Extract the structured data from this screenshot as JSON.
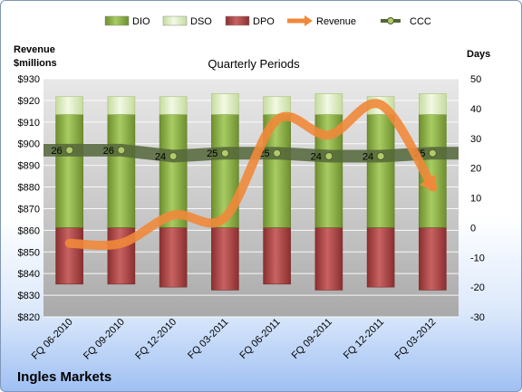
{
  "chart_data": {
    "type": "bar",
    "company": "Ingles Markets",
    "title": "Quarterly Periods",
    "left_axis_title": [
      "Revenue",
      "$millions"
    ],
    "right_axis_title": "Days",
    "left_ticks": [
      "$820",
      "$830",
      "$840",
      "$850",
      "$860",
      "$870",
      "$880",
      "$890",
      "$900",
      "$910",
      "$920",
      "$930"
    ],
    "right_ticks": [
      "-30",
      "-20",
      "-10",
      "0",
      "10",
      "20",
      "30",
      "40",
      "50"
    ],
    "left_range": [
      820,
      930
    ],
    "right_range": [
      -30,
      50
    ],
    "categories": [
      "FQ 06-2010",
      "FQ 09-2010",
      "FQ 12-2010",
      "FQ 03-2011",
      "FQ 06-2011",
      "FQ 09-2011",
      "FQ 12-2011",
      "FQ 03-2012"
    ],
    "series": [
      {
        "name": "DIO",
        "axis": "right",
        "kind": "stacked-bar",
        "color": "#8fb24a",
        "values": [
          38,
          38,
          38,
          38,
          38,
          38,
          38,
          38
        ]
      },
      {
        "name": "DSO",
        "axis": "right",
        "kind": "stacked-bar",
        "color": "#ddeec1",
        "values": [
          6,
          6,
          6,
          7,
          6,
          7,
          6,
          7
        ]
      },
      {
        "name": "DPO",
        "axis": "right",
        "kind": "negative-bar",
        "color": "#b24a4a",
        "values": [
          -19,
          -19,
          -20,
          -21,
          -19,
          -21,
          -20,
          -21
        ]
      },
      {
        "name": "Revenue",
        "axis": "left",
        "kind": "line",
        "color": "#f0883a",
        "values": [
          854,
          854,
          867,
          866,
          911,
          904,
          918,
          880
        ]
      },
      {
        "name": "CCC",
        "axis": "right",
        "kind": "line",
        "color": "#5a6b38",
        "values": [
          26,
          26,
          24,
          25,
          25,
          24,
          24,
          25
        ]
      }
    ],
    "ccc_labels": [
      "26",
      "26",
      "24",
      "25",
      "25",
      "24",
      "24",
      "25"
    ],
    "ccc_label_indices": [
      0,
      1,
      2,
      3,
      4,
      5,
      6,
      7
    ],
    "legend": [
      "DIO",
      "DSO",
      "DPO",
      "Revenue",
      "CCC"
    ],
    "legend_position": "top"
  }
}
